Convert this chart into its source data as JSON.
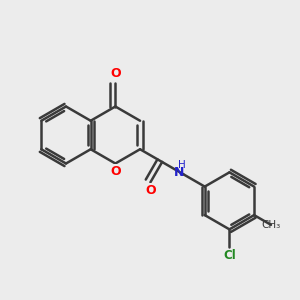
{
  "background_color": "#ececec",
  "bond_color": "#3a3a3a",
  "bond_width": 1.8,
  "atom_colors": {
    "O": "#ff0000",
    "N": "#2222cc",
    "Cl": "#228822",
    "C": "#3a3a3a"
  },
  "font_size": 9,
  "figsize": [
    3.0,
    3.0
  ],
  "dpi": 100,
  "scale": 1.0
}
